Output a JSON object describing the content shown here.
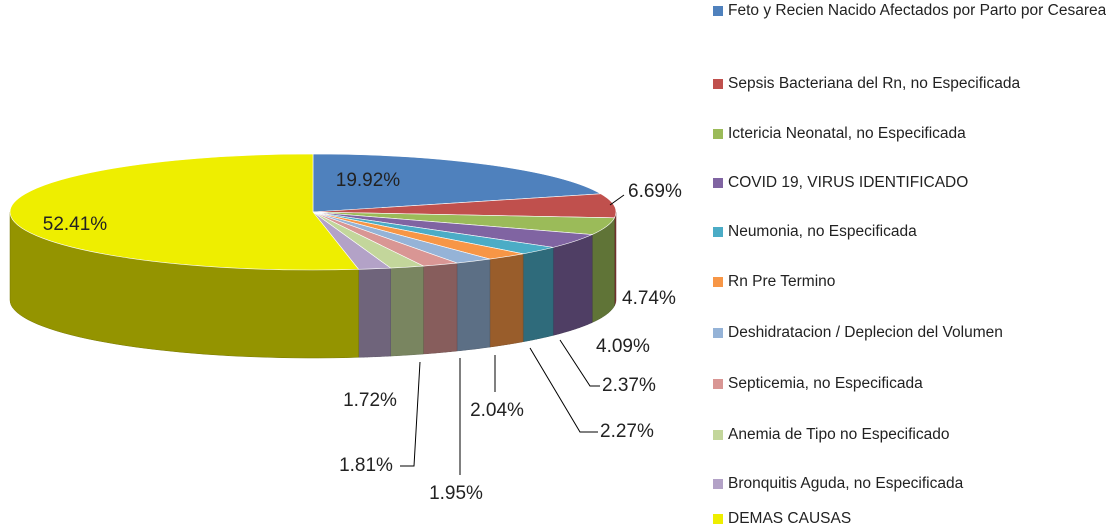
{
  "chart_data": {
    "type": "pie3d",
    "categories": [
      "Feto y Recien Nacido Afectados por Parto por Cesarea",
      "Sepsis Bacteriana del Rn, no Especificada",
      "Ictericia Neonatal, no Especificada",
      "COVID 19, VIRUS IDENTIFICADO",
      "Neumonia, no Especificada",
      "Rn Pre Termino",
      "Deshidratacion / Deplecion del Volumen",
      "Septicemia, no Especificada",
      "Anemia de Tipo no Especificado",
      "Bronquitis Aguda, no Especificada",
      "DEMAS CAUSAS"
    ],
    "values": [
      19.92,
      6.69,
      4.74,
      4.09,
      2.37,
      2.27,
      2.04,
      1.95,
      1.81,
      1.72,
      52.41
    ],
    "value_labels": [
      "19.92%",
      "6.69%",
      "4.74%",
      "4.09%",
      "2.37%",
      "2.27%",
      "2.04%",
      "1.95%",
      "1.81%",
      "1.72%",
      "52.41%"
    ],
    "colors": [
      "#4f81bd",
      "#c0504d",
      "#9bbb59",
      "#8064a2",
      "#4bacc6",
      "#f79646",
      "#95b3d7",
      "#d99694",
      "#c3d69b",
      "#b3a2c7",
      "#eeee00"
    ],
    "legend": "right"
  }
}
